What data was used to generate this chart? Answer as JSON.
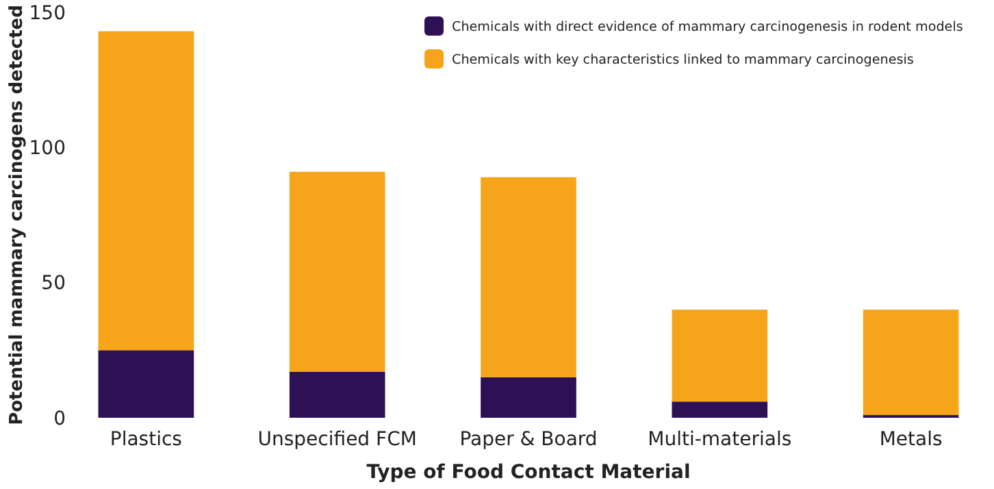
{
  "chart_data": {
    "type": "bar",
    "stacked": true,
    "xlabel": "Type of Food Contact Material",
    "ylabel": "Potential mammary carcinogens detected",
    "categories": [
      "Plastics",
      "Unspecified FCM",
      "Paper & Board",
      "Multi-materials",
      "Metals"
    ],
    "series": [
      {
        "name": "Chemicals with direct evidence of mammary carcinogenesis in rodent models",
        "color": "#2e1055",
        "values": [
          25,
          17,
          15,
          6,
          1
        ]
      },
      {
        "name": "Chemicals with key characteristics linked to mammary carcinogenesis",
        "color": "#f6a51a",
        "values": [
          118,
          74,
          74,
          34,
          39
        ]
      }
    ],
    "ylim": [
      0,
      150
    ],
    "yticks": [
      0,
      50,
      100,
      150
    ],
    "grid": false,
    "legend": "top right"
  }
}
